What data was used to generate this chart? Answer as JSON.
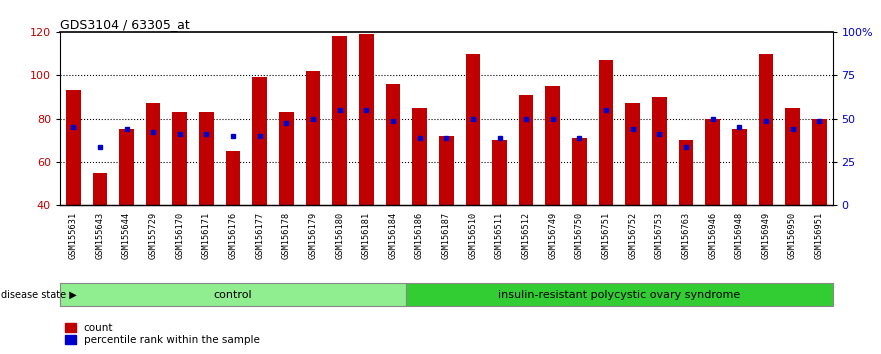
{
  "title": "GDS3104 / 63305_at",
  "samples": [
    "GSM155631",
    "GSM155643",
    "GSM155644",
    "GSM155729",
    "GSM156170",
    "GSM156171",
    "GSM156176",
    "GSM156177",
    "GSM156178",
    "GSM156179",
    "GSM156180",
    "GSM156181",
    "GSM156184",
    "GSM156186",
    "GSM156187",
    "GSM156510",
    "GSM156511",
    "GSM156512",
    "GSM156749",
    "GSM156750",
    "GSM156751",
    "GSM156752",
    "GSM156753",
    "GSM156763",
    "GSM156946",
    "GSM156948",
    "GSM156949",
    "GSM156950",
    "GSM156951"
  ],
  "bar_values": [
    93,
    55,
    75,
    87,
    83,
    83,
    65,
    99,
    83,
    102,
    118,
    119,
    96,
    85,
    72,
    110,
    70,
    91,
    95,
    71,
    107,
    87,
    90,
    70,
    80,
    75,
    110,
    85,
    80
  ],
  "blue_dot_values": [
    76,
    67,
    75,
    74,
    73,
    73,
    72,
    72,
    78,
    80,
    84,
    84,
    79,
    71,
    71,
    80,
    71,
    80,
    80,
    71,
    84,
    75,
    73,
    67,
    80,
    76,
    79,
    75,
    79
  ],
  "n_control": 13,
  "ylim_left": [
    40,
    120
  ],
  "ylim_right": [
    0,
    100
  ],
  "bar_color": "#C00000",
  "dot_color": "#0000CC",
  "control_color": "#90EE90",
  "disease_color": "#32CD32",
  "label_bg_color": "#C8C8C8",
  "control_label": "control",
  "disease_label": "insulin-resistant polycystic ovary syndrome",
  "disease_state_label": "disease state",
  "legend_count": "count",
  "legend_percentile": "percentile rank within the sample",
  "right_tick_labels": [
    "0",
    "25",
    "50",
    "75",
    "100%"
  ],
  "right_ticks": [
    0,
    25,
    50,
    75,
    100
  ],
  "grid_ticks": [
    60,
    80,
    100
  ]
}
